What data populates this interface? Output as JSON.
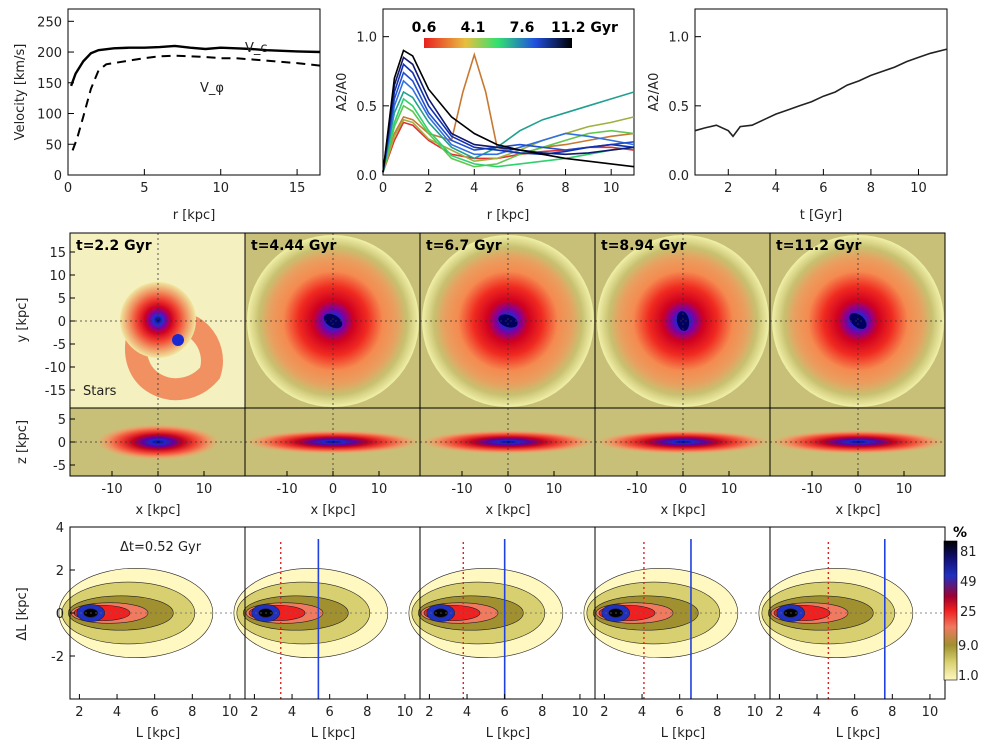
{
  "panel_a": {
    "title": "",
    "xlabel": "r [kpc]",
    "ylabel": "Velocity [km/s]",
    "xlim": [
      0,
      16.5
    ],
    "ylim": [
      0,
      270
    ],
    "xticks": [
      "0",
      "5",
      "10",
      "15"
    ],
    "yticks": [
      "0",
      "50",
      "100",
      "150",
      "200",
      "250"
    ],
    "label_vc": "V_c",
    "label_vphi": "V_φ"
  },
  "panel_b": {
    "xlabel": "r [kpc]",
    "ylabel": "A2/A0",
    "xlim": [
      0,
      11
    ],
    "ylim": [
      0,
      1.2
    ],
    "xticks": [
      "0",
      "2",
      "4",
      "6",
      "8",
      "10"
    ],
    "yticks": [
      "0.0",
      "0.5",
      "1.0"
    ],
    "colorbar_ticks": [
      "0.6",
      "4.1",
      "7.6",
      "11.2 Gyr"
    ]
  },
  "panel_c": {
    "xlabel": "t [Gyr]",
    "ylabel": "A2/A0",
    "xlim": [
      0.6,
      11.2
    ],
    "ylim": [
      0,
      1.2
    ],
    "xticks": [
      "2",
      "4",
      "6",
      "8",
      "10"
    ],
    "yticks": [
      "0.0",
      "0.5",
      "1.0"
    ]
  },
  "maps": {
    "times": [
      "t=2.2 Gyr",
      "t=4.44 Gyr",
      "t=6.7 Gyr",
      "t=8.94 Gyr",
      "t=11.2 Gyr"
    ],
    "stars_label": "Stars",
    "ylabel_face": "y [kpc]",
    "ylabel_edge": "z [kpc]",
    "xlabel": "x [kpc]",
    "yticks_face": [
      "15",
      "10",
      "5",
      "0",
      "-5",
      "-10",
      "-15"
    ],
    "yticks_edge": [
      "5",
      "0",
      "-5"
    ],
    "xticks": [
      "-10",
      "0",
      "10"
    ]
  },
  "bottom": {
    "ylabel": "ΔL [kpc]",
    "xlabel": "L [kpc]",
    "dt_label": "Δt=0.52 Gyr",
    "yticks": [
      "4",
      "2",
      "0",
      "-2"
    ],
    "xticks": [
      "2",
      "4",
      "6",
      "8",
      "10"
    ],
    "colorbar_title": "%",
    "colorbar_ticks": [
      "81",
      "49",
      "25",
      "9.0",
      "1.0"
    ]
  },
  "chart_data": [
    {
      "type": "line",
      "name": "rotation curve",
      "xlabel": "r [kpc]",
      "ylabel": "Velocity [km/s]",
      "xlim": [
        0,
        16.5
      ],
      "ylim": [
        0,
        270
      ],
      "series": [
        {
          "name": "V_c",
          "x": [
            0.2,
            0.5,
            1,
            1.5,
            2,
            3,
            4,
            5,
            6,
            7,
            8,
            9,
            10,
            11,
            12,
            13,
            14,
            15,
            16.5
          ],
          "y": [
            145,
            165,
            185,
            198,
            203,
            206,
            207,
            207,
            208,
            210,
            207,
            205,
            207,
            206,
            205,
            203,
            202,
            201,
            200
          ]
        },
        {
          "name": "V_φ",
          "x": [
            0.3,
            0.6,
            1,
            1.5,
            2,
            2.5,
            3,
            4,
            5,
            6,
            7,
            8,
            9,
            10,
            11,
            12,
            13,
            14,
            15,
            16.5
          ],
          "y": [
            40,
            60,
            95,
            140,
            170,
            180,
            182,
            186,
            190,
            193,
            194,
            193,
            192,
            190,
            190,
            188,
            186,
            184,
            182,
            178
          ]
        }
      ]
    },
    {
      "type": "line",
      "name": "A2/A0 radial profiles",
      "xlabel": "r [kpc]",
      "ylabel": "A2/A0",
      "xlim": [
        0,
        11
      ],
      "ylim": [
        0,
        1.2
      ],
      "colorbar": {
        "min": 0.6,
        "max": 11.2,
        "unit": "Gyr",
        "colors": [
          "#e02020",
          "#e6c040",
          "#30d060",
          "#2060e0",
          "#000000"
        ]
      },
      "series": [
        {
          "t": 0.6,
          "color": "#e03030",
          "x": [
            0,
            0.5,
            0.9,
            1.3,
            2,
            3,
            4,
            5,
            6,
            7,
            8,
            9,
            10,
            11
          ],
          "y": [
            0.02,
            0.25,
            0.38,
            0.36,
            0.25,
            0.15,
            0.12,
            0.12,
            0.15,
            0.17,
            0.18,
            0.2,
            0.2,
            0.18
          ]
        },
        {
          "t": 1.5,
          "color": "#c87830",
          "x": [
            0,
            0.5,
            0.9,
            1.3,
            2,
            3,
            3.5,
            4,
            4.5,
            5,
            6,
            7,
            8,
            9,
            10,
            11
          ],
          "y": [
            0.02,
            0.3,
            0.42,
            0.4,
            0.3,
            0.25,
            0.6,
            0.87,
            0.6,
            0.2,
            0.15,
            0.2,
            0.22,
            0.25,
            0.28,
            0.3
          ]
        },
        {
          "t": 2.2,
          "color": "#a0b040",
          "x": [
            0,
            0.5,
            0.9,
            1.3,
            2,
            3,
            4,
            5,
            6,
            7,
            8,
            9,
            10,
            11
          ],
          "y": [
            0.02,
            0.28,
            0.4,
            0.38,
            0.26,
            0.18,
            0.1,
            0.12,
            0.18,
            0.25,
            0.3,
            0.35,
            0.38,
            0.42
          ]
        },
        {
          "t": 3.0,
          "color": "#60c850",
          "x": [
            0,
            0.5,
            0.9,
            1.3,
            2,
            3,
            4,
            5,
            6,
            7,
            8,
            9,
            10,
            11
          ],
          "y": [
            0.02,
            0.35,
            0.5,
            0.46,
            0.3,
            0.12,
            0.06,
            0.08,
            0.15,
            0.2,
            0.25,
            0.3,
            0.32,
            0.3
          ]
        },
        {
          "t": 4.1,
          "color": "#30d070",
          "x": [
            0,
            0.5,
            0.9,
            1.3,
            2,
            3,
            4,
            5,
            6,
            7,
            8,
            9,
            10,
            11
          ],
          "y": [
            0.02,
            0.38,
            0.55,
            0.5,
            0.32,
            0.14,
            0.08,
            0.06,
            0.08,
            0.1,
            0.12,
            0.15,
            0.18,
            0.2
          ]
        },
        {
          "t": 5.0,
          "color": "#20a090",
          "x": [
            0,
            0.5,
            0.9,
            1.3,
            2,
            3,
            4,
            5,
            6,
            7,
            8,
            9,
            10,
            11
          ],
          "y": [
            0.02,
            0.45,
            0.6,
            0.56,
            0.38,
            0.2,
            0.12,
            0.2,
            0.32,
            0.4,
            0.45,
            0.5,
            0.55,
            0.6
          ]
        },
        {
          "t": 6.0,
          "color": "#3070e0",
          "x": [
            0,
            0.5,
            0.9,
            1.3,
            2,
            3,
            4,
            5,
            6,
            7,
            8,
            9,
            10,
            11
          ],
          "y": [
            0.02,
            0.5,
            0.68,
            0.62,
            0.42,
            0.22,
            0.15,
            0.15,
            0.2,
            0.25,
            0.3,
            0.28,
            0.25,
            0.22
          ]
        },
        {
          "t": 7.0,
          "color": "#2050d0",
          "x": [
            0,
            0.5,
            0.9,
            1.3,
            2,
            3,
            4,
            5,
            6,
            7,
            8,
            9,
            10,
            11
          ],
          "y": [
            0.02,
            0.55,
            0.74,
            0.68,
            0.45,
            0.25,
            0.18,
            0.2,
            0.22,
            0.2,
            0.18,
            0.2,
            0.22,
            0.24
          ]
        },
        {
          "t": 7.6,
          "color": "#1030b0",
          "x": [
            0,
            0.5,
            0.9,
            1.3,
            2,
            3,
            4,
            5,
            6,
            7,
            8,
            9,
            10,
            11
          ],
          "y": [
            0.02,
            0.6,
            0.8,
            0.74,
            0.5,
            0.28,
            0.2,
            0.18,
            0.16,
            0.15,
            0.17,
            0.2,
            0.22,
            0.2
          ]
        },
        {
          "t": 9.0,
          "color": "#101870",
          "x": [
            0,
            0.5,
            0.9,
            1.3,
            2,
            3,
            4,
            5,
            6,
            7,
            8,
            9,
            10,
            11
          ],
          "y": [
            0.02,
            0.65,
            0.85,
            0.8,
            0.55,
            0.3,
            0.22,
            0.2,
            0.18,
            0.16,
            0.15,
            0.16,
            0.18,
            0.2
          ]
        },
        {
          "t": 11.2,
          "color": "#000000",
          "x": [
            0,
            0.5,
            0.9,
            1.3,
            2,
            3,
            4,
            5,
            6,
            7,
            8,
            9,
            10,
            11
          ],
          "y": [
            0.02,
            0.7,
            0.9,
            0.86,
            0.62,
            0.42,
            0.3,
            0.22,
            0.18,
            0.15,
            0.12,
            0.1,
            0.08,
            0.06
          ]
        }
      ]
    },
    {
      "type": "line",
      "name": "A2/A0 vs time",
      "xlabel": "t [Gyr]",
      "ylabel": "A2/A0",
      "xlim": [
        0.6,
        11.2
      ],
      "ylim": [
        0,
        1.2
      ],
      "series": [
        {
          "name": "bar strength",
          "x": [
            0.6,
            1,
            1.5,
            2,
            2.2,
            2.5,
            3,
            3.5,
            4,
            4.5,
            5,
            5.5,
            6,
            6.5,
            7,
            7.5,
            8,
            8.5,
            9,
            9.5,
            10,
            10.5,
            11.2
          ],
          "y": [
            0.32,
            0.34,
            0.36,
            0.32,
            0.28,
            0.35,
            0.36,
            0.4,
            0.44,
            0.47,
            0.5,
            0.53,
            0.57,
            0.6,
            0.65,
            0.68,
            0.72,
            0.75,
            0.78,
            0.82,
            0.85,
            0.88,
            0.91
          ]
        }
      ]
    },
    {
      "type": "heatmap",
      "name": "stellar density maps",
      "times_gyr": [
        2.2,
        4.44,
        6.7,
        8.94,
        11.2
      ],
      "xlim": [
        -19,
        19
      ],
      "ylim_face": [
        -19,
        19
      ],
      "ylim_edge": [
        -8,
        8
      ]
    },
    {
      "type": "heatmap",
      "name": "ΔL vs L contours",
      "xlim": [
        1.5,
        10.8
      ],
      "ylim": [
        -4,
        4
      ],
      "corotation_L": [
        null,
        5.4,
        6.0,
        6.6,
        7.6
      ],
      "dotted_L": [
        null,
        3.4,
        3.8,
        4.1,
        4.6
      ]
    }
  ]
}
